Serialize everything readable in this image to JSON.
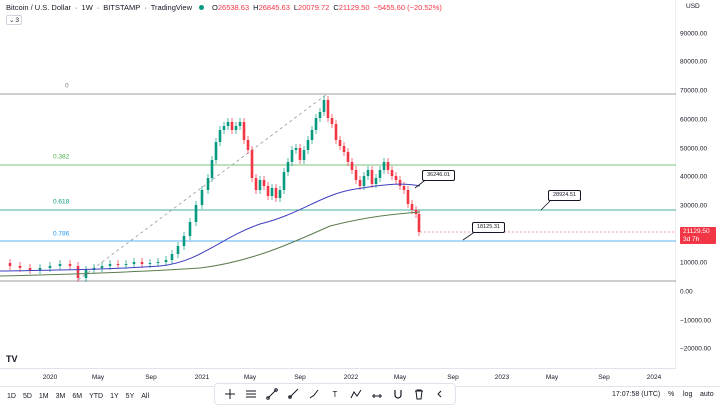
{
  "header": {
    "symbol": "Bitcoin / U.S. Dollar",
    "interval": "1W",
    "exchange": "BITSTAMP",
    "platform": "TradingView",
    "open_label": "O",
    "open": "26538.63",
    "high_label": "H",
    "high": "26845.63",
    "low_label": "L",
    "low": "20079.72",
    "close_label": "C",
    "close": "21129.50",
    "change": "−5455.60 (−20.52%)"
  },
  "indicator_toggle": {
    "count": "3",
    "icon": "chevron-down-icon"
  },
  "price_axis": {
    "currency": "USD",
    "ticks": [
      "90000.00",
      "80000.00",
      "70000.00",
      "60000.00",
      "50000.00",
      "40000.00",
      "30000.00",
      "20000.00",
      "10000.00",
      "0.00",
      "−10000.00",
      "−20000.00"
    ]
  },
  "current_price": {
    "value": "21129.50",
    "countdown": "3d 7h",
    "color": "#f23645"
  },
  "fib_levels": {
    "labels": [
      "0",
      "0.382",
      "0.618",
      "0.786"
    ],
    "colors": [
      "#787b86",
      "#4caf50",
      "#089981",
      "#2196f3"
    ]
  },
  "callouts": [
    "36246.01",
    "28924.51",
    "18125.31"
  ],
  "time_axis": {
    "ticks": [
      "2020",
      "May",
      "Sep",
      "2021",
      "May",
      "Sep",
      "2022",
      "May",
      "Sep",
      "2023",
      "May",
      "Sep",
      "2024"
    ]
  },
  "chart_data": {
    "type": "candlestick",
    "ylim": [
      -20000,
      90000
    ],
    "ma_colors": {
      "ma_short": "#3f3fbf",
      "ma_long": "#5b7c4f"
    },
    "up_color": "#089981",
    "down_color": "#f23645"
  },
  "range_buttons": [
    "1D",
    "5D",
    "1M",
    "3M",
    "6M",
    "YTD",
    "1Y",
    "5Y",
    "All"
  ],
  "draw_tools": [
    "crosshair-icon",
    "horizontal-lines-icon",
    "trend-line-icon",
    "ray-icon",
    "brush-icon",
    "text-icon",
    "pattern-icon",
    "measure-icon",
    "magnet-icon",
    "trash-icon",
    "collapse-icon"
  ],
  "clock": "17:07:58 (UTC)",
  "scale_options": [
    "%",
    "log",
    "auto"
  ],
  "logo": "TV"
}
